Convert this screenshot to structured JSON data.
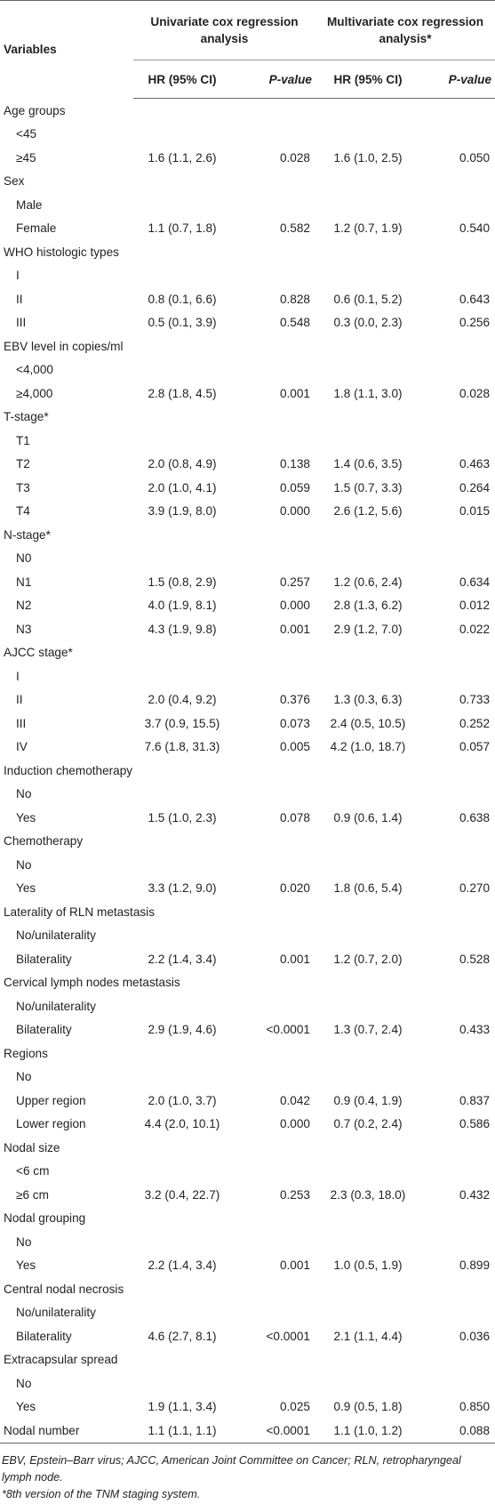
{
  "header": {
    "variables": "Variables",
    "univariate": "Univariate cox regression analysis",
    "multivariate": "Multivariate cox regression analysis*",
    "subheaders": [
      "HR (95% CI)",
      "P-value",
      "HR (95% CI)",
      "P-value"
    ]
  },
  "groups": [
    {
      "name": "Age groups",
      "rows": [
        [
          "<45"
        ],
        [
          "≥45",
          "1.6 (1.1, 2.6)",
          "0.028",
          "1.6 (1.0, 2.5)",
          "0.050"
        ]
      ]
    },
    {
      "name": "Sex",
      "rows": [
        [
          "Male"
        ],
        [
          "Female",
          "1.1 (0.7, 1.8)",
          "0.582",
          "1.2 (0.7, 1.9)",
          "0.540"
        ]
      ]
    },
    {
      "name": "WHO histologic types",
      "rows": [
        [
          "I"
        ],
        [
          "II",
          "0.8 (0.1, 6.6)",
          "0.828",
          "0.6 (0.1, 5.2)",
          "0.643"
        ],
        [
          "III",
          "0.5 (0.1, 3.9)",
          "0.548",
          "0.3 (0.0, 2.3)",
          "0.256"
        ]
      ]
    },
    {
      "name": "EBV level in copies/ml",
      "rows": [
        [
          "<4,000"
        ],
        [
          "≥4,000",
          "2.8 (1.8, 4.5)",
          "0.001",
          "1.8 (1.1, 3.0)",
          "0.028"
        ]
      ]
    },
    {
      "name": "T-stage*",
      "rows": [
        [
          "T1"
        ],
        [
          "T2",
          "2.0 (0.8, 4.9)",
          "0.138",
          "1.4 (0.6, 3.5)",
          "0.463"
        ],
        [
          "T3",
          "2.0 (1.0, 4.1)",
          "0.059",
          "1.5 (0.7, 3.3)",
          "0.264"
        ],
        [
          "T4",
          "3.9 (1.9, 8.0)",
          "0.000",
          "2.6 (1.2, 5.6)",
          "0.015"
        ]
      ]
    },
    {
      "name": "N-stage*",
      "rows": [
        [
          "N0"
        ],
        [
          "N1",
          "1.5 (0.8, 2.9)",
          "0.257",
          "1.2 (0.6, 2.4)",
          "0.634"
        ],
        [
          "N2",
          "4.0 (1.9, 8.1)",
          "0.000",
          "2.8 (1.3, 6.2)",
          "0.012"
        ],
        [
          "N3",
          "4.3 (1.9, 9.8)",
          "0.001",
          "2.9 (1.2, 7.0)",
          "0.022"
        ]
      ]
    },
    {
      "name": "AJCC stage*",
      "rows": [
        [
          "I"
        ],
        [
          "II",
          "2.0 (0.4, 9.2)",
          "0.376",
          "1.3 (0.3, 6.3)",
          "0.733"
        ],
        [
          "III",
          "3.7 (0.9, 15.5)",
          "0.073",
          "2.4 (0.5, 10.5)",
          "0.252"
        ],
        [
          "IV",
          "7.6 (1.8, 31.3)",
          "0.005",
          "4.2 (1.0, 18.7)",
          "0.057"
        ]
      ]
    },
    {
      "name": "Induction chemotherapy",
      "rows": [
        [
          "No"
        ],
        [
          "Yes",
          "1.5 (1.0, 2.3)",
          "0.078",
          "0.9 (0.6, 1.4)",
          "0.638"
        ]
      ]
    },
    {
      "name": "Chemotherapy",
      "rows": [
        [
          "No"
        ],
        [
          "Yes",
          "3.3 (1.2, 9.0)",
          "0.020",
          "1.8 (0.6, 5.4)",
          "0.270"
        ]
      ]
    },
    {
      "name": "Laterality of RLN metastasis",
      "rows": [
        [
          "No/unilaterality"
        ],
        [
          "Bilaterality",
          "2.2 (1.4, 3.4)",
          "0.001",
          "1.2 (0.7, 2.0)",
          "0.528"
        ]
      ]
    },
    {
      "name": "Cervical lymph nodes metastasis",
      "rows": [
        [
          "No/unilaterality"
        ],
        [
          "Bilaterality",
          "2.9 (1.9, 4.6)",
          "<0.0001",
          "1.3 (0.7, 2.4)",
          "0.433"
        ]
      ]
    },
    {
      "name": "Regions",
      "rows": [
        [
          "No"
        ],
        [
          "Upper region",
          "2.0 (1.0, 3.7)",
          "0.042",
          "0.9 (0.4, 1.9)",
          "0.837"
        ],
        [
          "Lower region",
          "4.4 (2.0, 10.1)",
          "0.000",
          "0.7 (0.2, 2.4)",
          "0.586"
        ]
      ]
    },
    {
      "name": "Nodal size",
      "rows": [
        [
          "<6 cm"
        ],
        [
          "≥6 cm",
          "3.2 (0.4, 22.7)",
          "0.253",
          "2.3 (0.3, 18.0)",
          "0.432"
        ]
      ]
    },
    {
      "name": "Nodal grouping",
      "rows": [
        [
          "No"
        ],
        [
          "Yes",
          "2.2 (1.4, 3.4)",
          "0.001",
          "1.0 (0.5, 1.9)",
          "0.899"
        ]
      ]
    },
    {
      "name": "Central nodal necrosis",
      "rows": [
        [
          "No/unilaterality"
        ],
        [
          "Bilaterality",
          "4.6 (2.7, 8.1)",
          "<0.0001",
          "2.1 (1.1, 4.4)",
          "0.036"
        ]
      ]
    },
    {
      "name": "Extracapsular spread",
      "rows": [
        [
          "No"
        ],
        [
          "Yes",
          "1.9 (1.1, 3.4)",
          "0.025",
          "0.9 (0.5, 1.8)",
          "0.850"
        ]
      ]
    },
    {
      "name": "Nodal number",
      "values": [
        "1.1 (1.1, 1.1)",
        "<0.0001",
        "1.1 (1.0, 1.2)",
        "0.088"
      ]
    }
  ],
  "footnotes": [
    "EBV, Epstein–Barr virus; AJCC, American Joint Committee on Cancer; RLN, retropharyngeal lymph node.",
    "*8th version of the TNM staging system."
  ]
}
